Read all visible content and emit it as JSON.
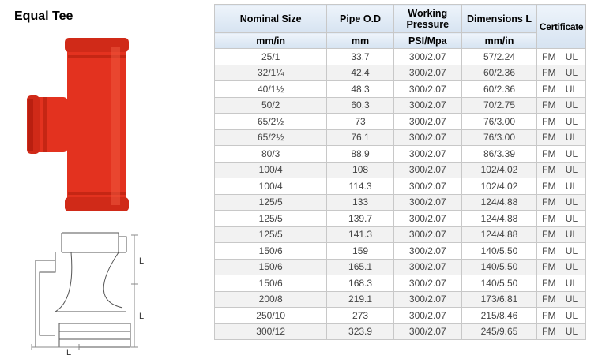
{
  "header": {
    "title": "Equal Tee"
  },
  "drawing": {
    "labels": [
      "L",
      "L",
      "L"
    ]
  },
  "table": {
    "headers": [
      "Nominal Size",
      "Pipe O.D",
      "Working Pressure",
      "Dimensions  L",
      "Certificate"
    ],
    "units": [
      "mm/in",
      "mm",
      "PSI/Mpa",
      "mm/in"
    ],
    "rows": [
      [
        "25/1",
        "33.7",
        "300/2.07",
        "57/2.24",
        "FM UL"
      ],
      [
        "32/1¼",
        "42.4",
        "300/2.07",
        "60/2.36",
        "FM UL"
      ],
      [
        "40/1½",
        "48.3",
        "300/2.07",
        "60/2.36",
        "FM UL"
      ],
      [
        "50/2",
        "60.3",
        "300/2.07",
        "70/2.75",
        "FM UL"
      ],
      [
        "65/2½",
        "73",
        "300/2.07",
        "76/3.00",
        "FM UL"
      ],
      [
        "65/2½",
        "76.1",
        "300/2.07",
        "76/3.00",
        "FM UL"
      ],
      [
        "80/3",
        "88.9",
        "300/2.07",
        "86/3.39",
        "FM UL"
      ],
      [
        "100/4",
        "108",
        "300/2.07",
        "102/4.02",
        "FM UL"
      ],
      [
        "100/4",
        "114.3",
        "300/2.07",
        "102/4.02",
        "FM UL"
      ],
      [
        "125/5",
        "133",
        "300/2.07",
        "124/4.88",
        "FM UL"
      ],
      [
        "125/5",
        "139.7",
        "300/2.07",
        "124/4.88",
        "FM UL"
      ],
      [
        "125/5",
        "141.3",
        "300/2.07",
        "124/4.88",
        "FM UL"
      ],
      [
        "150/6",
        "159",
        "300/2.07",
        "140/5.50",
        "FM UL"
      ],
      [
        "150/6",
        "165.1",
        "300/2.07",
        "140/5.50",
        "FM UL"
      ],
      [
        "150/6",
        "168.3",
        "300/2.07",
        "140/5.50",
        "FM UL"
      ],
      [
        "200/8",
        "219.1",
        "300/2.07",
        "173/6.81",
        "FM UL"
      ],
      [
        "250/10",
        "273",
        "300/2.07",
        "215/8.46",
        "FM UL"
      ],
      [
        "300/12",
        "323.9",
        "300/2.07",
        "245/9.65",
        "FM UL"
      ]
    ]
  }
}
